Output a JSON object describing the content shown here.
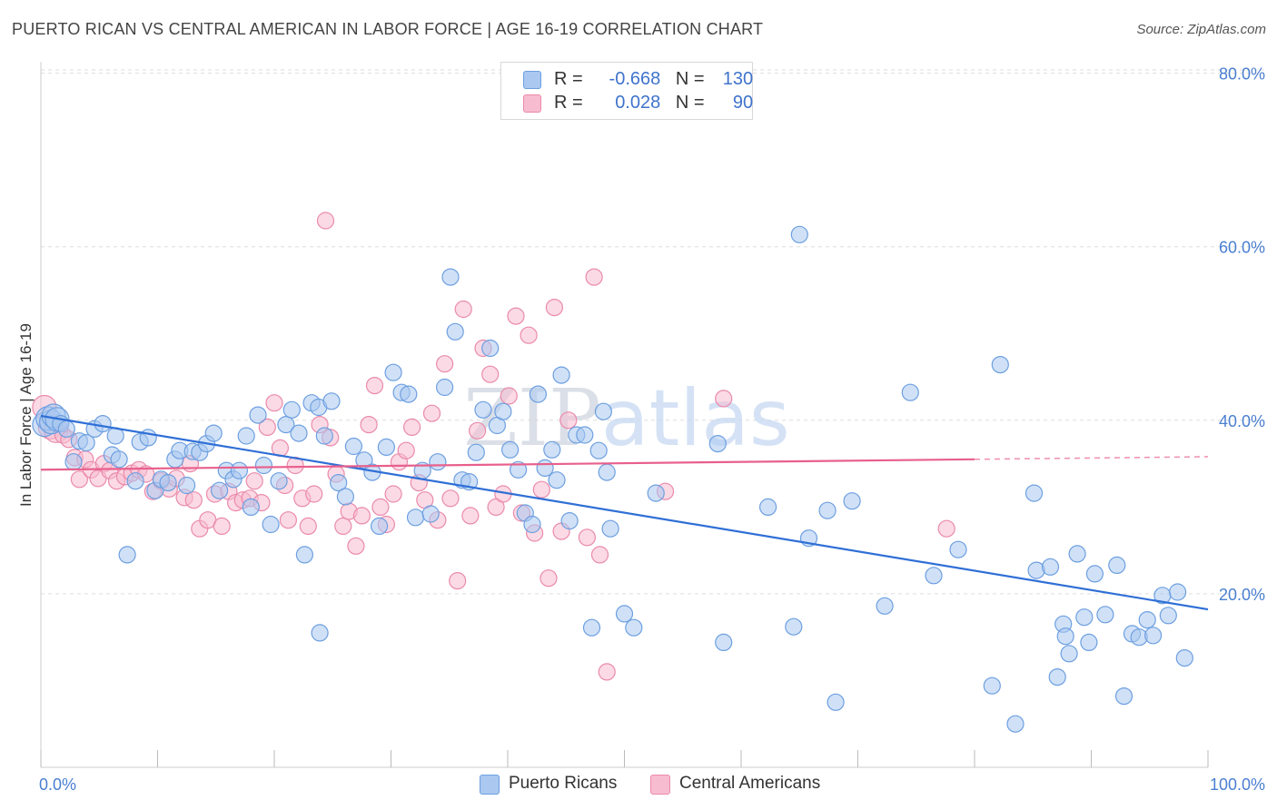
{
  "title": "PUERTO RICAN VS CENTRAL AMERICAN IN LABOR FORCE | AGE 16-19 CORRELATION CHART",
  "source": "Source: ZipAtlas.com",
  "watermark": "ZIPatlas",
  "legend": {
    "rows": [
      {
        "r_label": "R =",
        "r_value": "-0.668",
        "n_label": "N =",
        "n_value": "130"
      },
      {
        "r_label": "R =",
        "r_value": "0.028",
        "n_label": "N =",
        "n_value": "90"
      }
    ]
  },
  "colors": {
    "blue_fill": "#aac8f0",
    "blue_stroke": "#6d9fe0",
    "blue_line": "#2f6fd6",
    "pink_fill": "#f7bcd0",
    "pink_stroke": "#ea8aab",
    "pink_line": "#e8608c",
    "axis_label": "#4a7fd1",
    "grid": "#dddddd"
  },
  "chart_data": {
    "type": "scatter",
    "title": "PUERTO RICAN VS CENTRAL AMERICAN IN LABOR FORCE | AGE 16-19 CORRELATION CHART",
    "xlabel": "",
    "ylabel": "In Labor Force | Age 16-19",
    "xlim": [
      0,
      100
    ],
    "ylim": [
      0,
      80
    ],
    "x_tick_labels": [
      "0.0%",
      "100.0%"
    ],
    "y_ticks": [
      20,
      40,
      60,
      80
    ],
    "y_tick_labels": [
      "20.0%",
      "40.0%",
      "60.0%",
      "80.0%"
    ],
    "grid": true,
    "legend_position": "top-center",
    "series": [
      {
        "name": "Puerto Ricans",
        "color": "#aac8f0",
        "r": -0.668,
        "n": 130,
        "trend": {
          "x": [
            0,
            100
          ],
          "y": [
            40.5,
            18.2
          ]
        },
        "points": [
          [
            0.3,
            39.5
          ],
          [
            0.6,
            40.2
          ],
          [
            0.9,
            39.8
          ],
          [
            1.1,
            40.5
          ],
          [
            1.4,
            40.1
          ],
          [
            1.7,
            39.6
          ],
          [
            2.2,
            39.0
          ],
          [
            2.8,
            35.2
          ],
          [
            3.3,
            37.6
          ],
          [
            3.9,
            37.4
          ],
          [
            4.6,
            39.0
          ],
          [
            5.3,
            39.6
          ],
          [
            6.1,
            36.0
          ],
          [
            6.4,
            38.2
          ],
          [
            6.7,
            35.5
          ],
          [
            7.4,
            24.5
          ],
          [
            8.1,
            33.0
          ],
          [
            8.5,
            37.5
          ],
          [
            9.2,
            38.0
          ],
          [
            9.8,
            31.9
          ],
          [
            10.3,
            33.2
          ],
          [
            10.9,
            32.8
          ],
          [
            11.5,
            35.5
          ],
          [
            11.9,
            36.5
          ],
          [
            12.5,
            32.5
          ],
          [
            13.0,
            36.4
          ],
          [
            13.6,
            36.3
          ],
          [
            14.2,
            37.3
          ],
          [
            14.8,
            38.5
          ],
          [
            15.3,
            31.9
          ],
          [
            15.9,
            34.2
          ],
          [
            16.5,
            33.2
          ],
          [
            17.0,
            34.2
          ],
          [
            17.6,
            38.2
          ],
          [
            18.0,
            30.0
          ],
          [
            18.6,
            40.6
          ],
          [
            19.1,
            34.8
          ],
          [
            19.7,
            28.0
          ],
          [
            20.4,
            33.0
          ],
          [
            21.0,
            39.5
          ],
          [
            21.5,
            41.2
          ],
          [
            22.1,
            38.5
          ],
          [
            22.6,
            24.5
          ],
          [
            23.2,
            42.0
          ],
          [
            23.8,
            41.5
          ],
          [
            24.3,
            38.2
          ],
          [
            24.9,
            42.2
          ],
          [
            25.5,
            32.8
          ],
          [
            26.1,
            31.2
          ],
          [
            26.8,
            37.0
          ],
          [
            23.9,
            15.5
          ],
          [
            27.7,
            35.4
          ],
          [
            28.4,
            34.0
          ],
          [
            29.0,
            27.8
          ],
          [
            29.6,
            36.9
          ],
          [
            30.2,
            45.5
          ],
          [
            30.9,
            43.2
          ],
          [
            31.5,
            43.0
          ],
          [
            32.1,
            28.8
          ],
          [
            32.7,
            34.2
          ],
          [
            33.4,
            29.2
          ],
          [
            34.0,
            35.2
          ],
          [
            34.6,
            43.8
          ],
          [
            35.1,
            56.5
          ],
          [
            35.5,
            50.2
          ],
          [
            36.1,
            33.1
          ],
          [
            36.7,
            32.9
          ],
          [
            37.3,
            36.3
          ],
          [
            37.9,
            41.2
          ],
          [
            38.5,
            48.3
          ],
          [
            39.1,
            39.4
          ],
          [
            39.6,
            41.0
          ],
          [
            40.2,
            36.6
          ],
          [
            40.9,
            34.3
          ],
          [
            41.5,
            29.3
          ],
          [
            42.1,
            28.0
          ],
          [
            42.6,
            43.0
          ],
          [
            43.2,
            34.5
          ],
          [
            43.8,
            36.6
          ],
          [
            44.2,
            33.1
          ],
          [
            44.6,
            45.2
          ],
          [
            45.3,
            28.4
          ],
          [
            45.9,
            38.3
          ],
          [
            46.6,
            38.3
          ],
          [
            47.2,
            16.1
          ],
          [
            47.8,
            36.5
          ],
          [
            48.2,
            41.0
          ],
          [
            48.5,
            34.0
          ],
          [
            48.8,
            27.5
          ],
          [
            50.0,
            17.7
          ],
          [
            50.8,
            16.1
          ],
          [
            52.7,
            31.6
          ],
          [
            58.0,
            37.3
          ],
          [
            58.5,
            14.4
          ],
          [
            62.3,
            30.0
          ],
          [
            64.5,
            16.2
          ],
          [
            65.0,
            61.4
          ],
          [
            65.8,
            26.4
          ],
          [
            67.4,
            29.6
          ],
          [
            68.1,
            7.5
          ],
          [
            69.5,
            30.7
          ],
          [
            72.3,
            18.6
          ],
          [
            74.5,
            43.2
          ],
          [
            76.5,
            22.1
          ],
          [
            78.6,
            25.1
          ],
          [
            81.5,
            9.4
          ],
          [
            82.2,
            46.4
          ],
          [
            83.5,
            5.0
          ],
          [
            85.1,
            31.6
          ],
          [
            85.3,
            22.7
          ],
          [
            86.5,
            23.1
          ],
          [
            87.1,
            10.4
          ],
          [
            87.6,
            16.5
          ],
          [
            87.8,
            15.1
          ],
          [
            88.1,
            13.1
          ],
          [
            88.8,
            24.6
          ],
          [
            89.4,
            17.3
          ],
          [
            89.8,
            14.4
          ],
          [
            90.3,
            22.3
          ],
          [
            91.2,
            17.6
          ],
          [
            92.2,
            23.3
          ],
          [
            92.8,
            8.2
          ],
          [
            93.5,
            15.4
          ],
          [
            94.1,
            15.0
          ],
          [
            94.8,
            17.0
          ],
          [
            95.3,
            15.2
          ],
          [
            96.1,
            19.8
          ],
          [
            96.6,
            17.5
          ],
          [
            97.4,
            20.2
          ],
          [
            98.0,
            12.6
          ]
        ]
      },
      {
        "name": "Central Americans",
        "color": "#f7bcd0",
        "r": 0.028,
        "n": 90,
        "trend": {
          "x": [
            0,
            80
          ],
          "y": [
            34.3,
            35.5
          ]
        },
        "trend_dashed": {
          "x": [
            80,
            100
          ],
          "y": [
            35.5,
            35.8
          ]
        },
        "points": [
          [
            0.3,
            41.5
          ],
          [
            0.8,
            39.2
          ],
          [
            1.3,
            38.8
          ],
          [
            1.9,
            38.3
          ],
          [
            2.4,
            37.8
          ],
          [
            2.9,
            35.7
          ],
          [
            3.3,
            33.2
          ],
          [
            3.8,
            35.5
          ],
          [
            4.3,
            34.3
          ],
          [
            4.9,
            33.3
          ],
          [
            5.4,
            35.0
          ],
          [
            5.9,
            34.2
          ],
          [
            6.5,
            33.0
          ],
          [
            7.2,
            33.5
          ],
          [
            7.8,
            33.9
          ],
          [
            8.4,
            34.3
          ],
          [
            9.0,
            33.8
          ],
          [
            9.6,
            31.8
          ],
          [
            10.3,
            33.0
          ],
          [
            11.0,
            32.1
          ],
          [
            11.6,
            33.3
          ],
          [
            12.3,
            31.1
          ],
          [
            12.8,
            35.0
          ],
          [
            13.1,
            30.8
          ],
          [
            13.6,
            27.5
          ],
          [
            14.3,
            28.5
          ],
          [
            14.9,
            31.5
          ],
          [
            15.5,
            27.8
          ],
          [
            16.1,
            31.8
          ],
          [
            16.7,
            30.5
          ],
          [
            17.3,
            30.8
          ],
          [
            17.9,
            31.0
          ],
          [
            18.3,
            33.0
          ],
          [
            18.9,
            30.5
          ],
          [
            19.4,
            39.2
          ],
          [
            20.0,
            42.0
          ],
          [
            20.5,
            36.8
          ],
          [
            20.9,
            32.5
          ],
          [
            21.2,
            28.5
          ],
          [
            21.8,
            34.8
          ],
          [
            22.4,
            31.0
          ],
          [
            22.9,
            27.8
          ],
          [
            23.4,
            31.5
          ],
          [
            23.9,
            39.5
          ],
          [
            24.4,
            63.0
          ],
          [
            24.8,
            38.0
          ],
          [
            25.3,
            33.8
          ],
          [
            25.9,
            27.8
          ],
          [
            26.4,
            29.5
          ],
          [
            27.0,
            25.5
          ],
          [
            27.5,
            29.0
          ],
          [
            28.1,
            39.5
          ],
          [
            28.6,
            44.0
          ],
          [
            29.1,
            30.0
          ],
          [
            29.6,
            28.0
          ],
          [
            30.2,
            31.5
          ],
          [
            30.7,
            35.2
          ],
          [
            31.3,
            36.5
          ],
          [
            31.8,
            39.2
          ],
          [
            32.4,
            32.8
          ],
          [
            32.9,
            30.8
          ],
          [
            33.5,
            40.8
          ],
          [
            34.0,
            28.5
          ],
          [
            34.6,
            46.5
          ],
          [
            35.1,
            31.0
          ],
          [
            35.7,
            21.5
          ],
          [
            36.2,
            52.8
          ],
          [
            36.8,
            29.0
          ],
          [
            37.4,
            38.8
          ],
          [
            37.9,
            48.3
          ],
          [
            38.5,
            45.3
          ],
          [
            39.0,
            30.0
          ],
          [
            39.6,
            31.5
          ],
          [
            40.1,
            42.8
          ],
          [
            40.7,
            52.0
          ],
          [
            41.2,
            29.3
          ],
          [
            41.8,
            49.8
          ],
          [
            42.3,
            27.0
          ],
          [
            42.9,
            32.0
          ],
          [
            43.5,
            21.8
          ],
          [
            44.0,
            53.0
          ],
          [
            44.6,
            27.2
          ],
          [
            45.2,
            40.0
          ],
          [
            46.8,
            26.5
          ],
          [
            47.4,
            56.5
          ],
          [
            47.9,
            24.5
          ],
          [
            48.5,
            11.0
          ],
          [
            53.5,
            31.8
          ],
          [
            58.5,
            42.5
          ],
          [
            77.6,
            27.5
          ]
        ]
      }
    ]
  }
}
